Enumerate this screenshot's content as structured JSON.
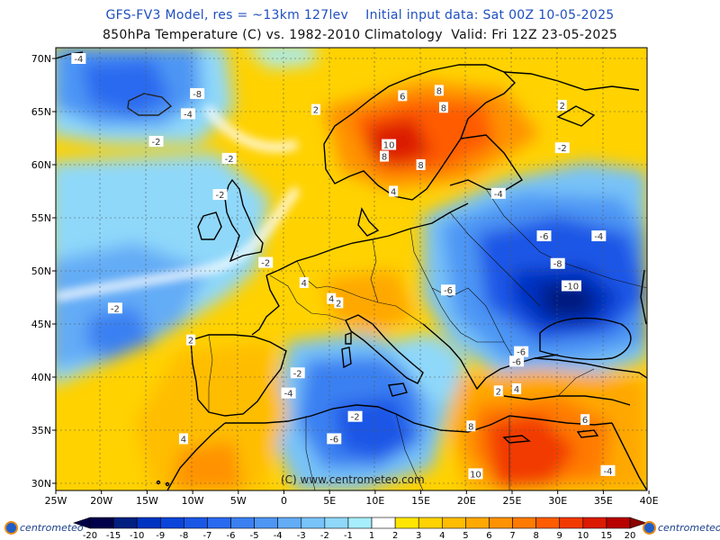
{
  "title_line1": "GFS-FV3 Model, res = ~13km 127lev    Initial input data: Sat 00Z 10-05-2025",
  "title_line2": "850hPa Temperature (C) vs. 1982-2010 Climatology  Valid: Fri 12Z 23-05-2025",
  "copyright": "(C) www.centrometeo.com",
  "logo_text": "centrometeo",
  "lat_labels": [
    "70N",
    "65N",
    "60N",
    "55N",
    "50N",
    "45N",
    "40N",
    "35N",
    "30N"
  ],
  "lon_labels": [
    "25W",
    "20W",
    "15W",
    "10W",
    "5W",
    "0",
    "5E",
    "10E",
    "15E",
    "20E",
    "25E",
    "30E",
    "35E",
    "40E"
  ],
  "legend": {
    "ticks": [
      "-20",
      "-15",
      "-10",
      "-9",
      "-8",
      "-7",
      "-6",
      "-5",
      "-4",
      "-3",
      "-2",
      "-1",
      "1",
      "2",
      "3",
      "4",
      "5",
      "6",
      "7",
      "8",
      "9",
      "10",
      "15",
      "20"
    ],
    "colors": [
      "#00004a",
      "#001f80",
      "#0033c2",
      "#0a44da",
      "#1a57e6",
      "#2a6af0",
      "#3a80f2",
      "#4e96f4",
      "#63acf6",
      "#78c3f8",
      "#8fd8fa",
      "#a6eefc",
      "#ffffff",
      "#ffe600",
      "#ffd200",
      "#ffbd00",
      "#ffa800",
      "#ff9200",
      "#ff7a00",
      "#ff5c00",
      "#f23a00",
      "#dc1a00",
      "#b80000"
    ]
  },
  "contour_labels": [
    {
      "text": "-4",
      "lon": -22.5,
      "lat": 70.0
    },
    {
      "text": "-8",
      "lon": -9.5,
      "lat": 66.7
    },
    {
      "text": "-4",
      "lon": -10.5,
      "lat": 64.8
    },
    {
      "text": "-2",
      "lon": -14.0,
      "lat": 62.2
    },
    {
      "text": "2",
      "lon": 3.5,
      "lat": 65.2
    },
    {
      "text": "-2",
      "lon": -6.0,
      "lat": 60.6
    },
    {
      "text": "-2",
      "lon": -7.0,
      "lat": 57.2
    },
    {
      "text": "6",
      "lon": 13.0,
      "lat": 66.5
    },
    {
      "text": "8",
      "lon": 17.0,
      "lat": 67.0
    },
    {
      "text": "8",
      "lon": 17.5,
      "lat": 65.4
    },
    {
      "text": "10",
      "lon": 11.5,
      "lat": 61.9
    },
    {
      "text": "8",
      "lon": 11.0,
      "lat": 60.8
    },
    {
      "text": "8",
      "lon": 15.0,
      "lat": 60.0
    },
    {
      "text": "4",
      "lon": 12.0,
      "lat": 57.5
    },
    {
      "text": "2",
      "lon": 30.5,
      "lat": 65.6
    },
    {
      "text": "-2",
      "lon": 30.5,
      "lat": 61.6
    },
    {
      "text": "-4",
      "lon": 23.5,
      "lat": 57.3
    },
    {
      "text": "-6",
      "lon": 28.5,
      "lat": 53.3
    },
    {
      "text": "-4",
      "lon": 34.5,
      "lat": 53.3
    },
    {
      "text": "-8",
      "lon": 30.0,
      "lat": 50.7
    },
    {
      "text": "-10",
      "lon": 31.5,
      "lat": 48.6
    },
    {
      "text": "-6",
      "lon": 18.0,
      "lat": 48.2
    },
    {
      "text": "-6",
      "lon": 26.0,
      "lat": 42.4
    },
    {
      "text": "-6",
      "lon": 25.5,
      "lat": 41.5
    },
    {
      "text": "-2",
      "lon": -2.0,
      "lat": 50.8
    },
    {
      "text": "4",
      "lon": 2.2,
      "lat": 48.9
    },
    {
      "text": "4",
      "lon": 5.2,
      "lat": 47.4
    },
    {
      "text": "2",
      "lon": 6.0,
      "lat": 47.0
    },
    {
      "text": "-2",
      "lon": -18.5,
      "lat": 46.5
    },
    {
      "text": "2",
      "lon": -10.2,
      "lat": 43.5
    },
    {
      "text": "-2",
      "lon": 1.5,
      "lat": 40.4
    },
    {
      "text": "-4",
      "lon": 0.5,
      "lat": 38.5
    },
    {
      "text": "-6",
      "lon": 5.5,
      "lat": 34.2
    },
    {
      "text": "-2",
      "lon": 7.8,
      "lat": 36.3
    },
    {
      "text": "4",
      "lon": -11.0,
      "lat": 34.2
    },
    {
      "text": "2",
      "lon": 23.5,
      "lat": 38.7
    },
    {
      "text": "4",
      "lon": 25.5,
      "lat": 38.9
    },
    {
      "text": "6",
      "lon": 33.0,
      "lat": 36.0
    },
    {
      "text": "8",
      "lon": 20.5,
      "lat": 35.4
    },
    {
      "text": "10",
      "lon": 21.0,
      "lat": 30.9
    },
    {
      "text": "-4",
      "lon": 35.5,
      "lat": 31.2
    }
  ]
}
